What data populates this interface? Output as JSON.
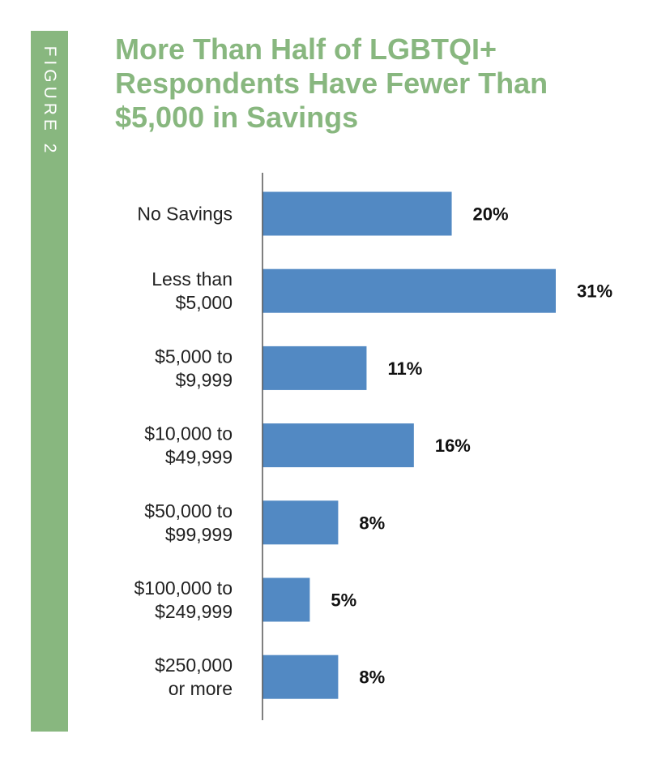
{
  "figure_label": "FIGURE 2",
  "title_lines": [
    "More Than Half of LGBTQI+",
    "Respondents Have Fewer Than",
    "$5,000 in Savings"
  ],
  "colors": {
    "accent_green": "#88b77f",
    "title_green": "#88b77f",
    "bar_blue": "#5289c3",
    "axis": "#555555"
  },
  "chart_data": {
    "type": "bar",
    "orientation": "horizontal",
    "title": "More Than Half of LGBTQI+ Respondents Have Fewer Than $5,000 in Savings",
    "categories": [
      [
        "No Savings"
      ],
      [
        "Less than",
        "$5,000"
      ],
      [
        "$5,000 to",
        "$9,999"
      ],
      [
        "$10,000 to",
        "$49,999"
      ],
      [
        "$50,000 to",
        "$99,999"
      ],
      [
        "$100,000 to",
        "$249,999"
      ],
      [
        "$250,000",
        "or more"
      ]
    ],
    "values": [
      20,
      31,
      11,
      16,
      8,
      5,
      8
    ],
    "value_labels": [
      "20%",
      "31%",
      "11%",
      "16%",
      "8%",
      "5%",
      "8%"
    ],
    "unit": "%",
    "xlim": [
      0,
      31
    ],
    "grid": false,
    "legend": "none"
  }
}
